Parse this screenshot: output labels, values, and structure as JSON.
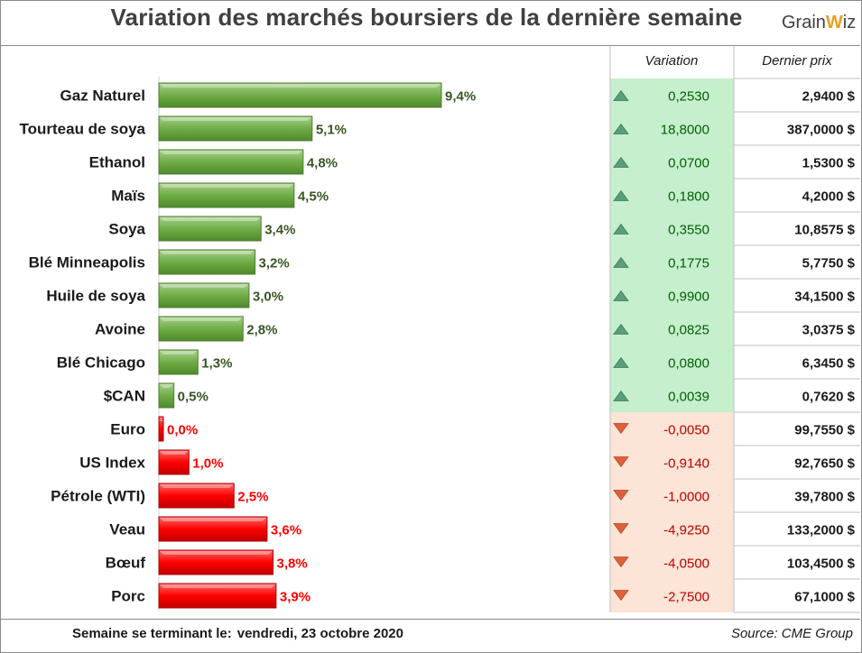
{
  "title": "Variation des marchés boursiers de la dernière semaine",
  "logo": {
    "text_a": "Grain",
    "text_w": "W",
    "text_b": "iz"
  },
  "footer": {
    "week_label": "Semaine se terminant le:",
    "week_date": "vendredi, 23 octobre 2020",
    "source": "Source: CME Group"
  },
  "colors": {
    "up": "#70ad47",
    "down": "#ff0000",
    "up_text": "#375623",
    "up_cell": "#c6efce",
    "down_cell": "#fce4d6",
    "up_cell_text": "#006100",
    "down_cell_text": "#c00000"
  },
  "chart_data": {
    "type": "bar",
    "orientation": "horizontal",
    "categories": [
      "Gaz Naturel",
      "Tourteau de soya",
      "Ethanol",
      "Maïs",
      "Soya",
      "Blé Minneapolis",
      "Huile de soya",
      "Avoine",
      "Blé Chicago",
      "$CAN",
      "Euro",
      "US Index",
      "Pétrole (WTI)",
      "Veau",
      "Bœuf",
      "Porc"
    ],
    "values": [
      9.4,
      5.1,
      4.8,
      4.5,
      3.4,
      3.2,
      3.0,
      2.8,
      1.3,
      0.5,
      0.0,
      1.0,
      2.5,
      3.6,
      3.8,
      3.9
    ],
    "value_labels": [
      "9,4%",
      "5,1%",
      "4,8%",
      "4,5%",
      "3,4%",
      "3,2%",
      "3,0%",
      "2,8%",
      "1,3%",
      "0,5%",
      "0,0%",
      "1,0%",
      "2,5%",
      "3,6%",
      "3,8%",
      "3,9%"
    ],
    "direction": [
      "up",
      "up",
      "up",
      "up",
      "up",
      "up",
      "up",
      "up",
      "up",
      "up",
      "down",
      "down",
      "down",
      "down",
      "down",
      "down"
    ]
  },
  "table": {
    "headers": [
      "Variation",
      "Dernier prix"
    ],
    "variation": [
      "0,2530",
      "18,8000",
      "0,0700",
      "0,1800",
      "0,3550",
      "0,1775",
      "0,9900",
      "0,0825",
      "0,0800",
      "0,0039",
      "-0,0050",
      "-0,9140",
      "-1,0000",
      "-4,9250",
      "-4,0500",
      "-2,7500"
    ],
    "price": [
      "2,9400 $",
      "387,0000 $",
      "1,5300 $",
      "4,2000 $",
      "10,8575 $",
      "5,7750 $",
      "34,1500 $",
      "3,0375 $",
      "6,3450 $",
      "0,7620 $",
      "99,7550 $",
      "92,7650 $",
      "39,7800 $",
      "133,2000 $",
      "103,4500 $",
      "67,1000 $"
    ]
  }
}
